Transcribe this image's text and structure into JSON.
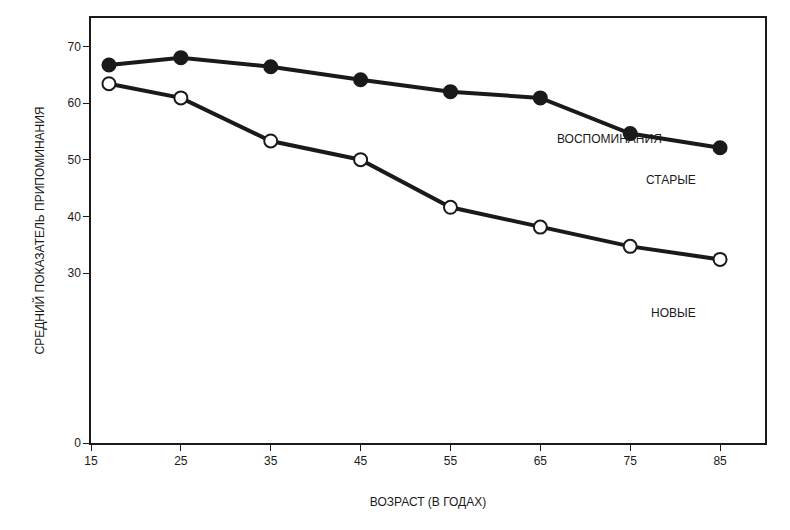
{
  "chart_data": {
    "type": "line",
    "x_label": "ВОЗРАСТ (В ГОДАХ)",
    "y_label": "СРЕДНИЙ ПОКАЗАТЕЛЬ ПРИПОМИНАНИЯ",
    "annotations": [
      "ВОСПОМИНАНИЯ"
    ],
    "x": [
      17,
      25,
      35,
      45,
      55,
      65,
      75,
      85
    ],
    "series": [
      {
        "name": "СТАРЫЕ",
        "color": "#1a1a1a",
        "marker": "filled",
        "values": [
          66.7,
          68,
          66.4,
          64.1,
          62,
          60.9,
          54.6,
          52.1
        ]
      },
      {
        "name": "НОВЫЕ",
        "color": "#1a1a1a",
        "marker": "open",
        "values": [
          63.4,
          60.9,
          53.3,
          50,
          41.6,
          38.1,
          34.7,
          32.4
        ]
      }
    ],
    "xlim": [
      15,
      90
    ],
    "xticks": [
      15,
      25,
      35,
      45,
      55,
      65,
      75,
      85
    ],
    "ylim": [
      0,
      75
    ],
    "yticks": [
      0,
      30,
      40,
      50,
      60,
      70
    ],
    "grid": false
  }
}
